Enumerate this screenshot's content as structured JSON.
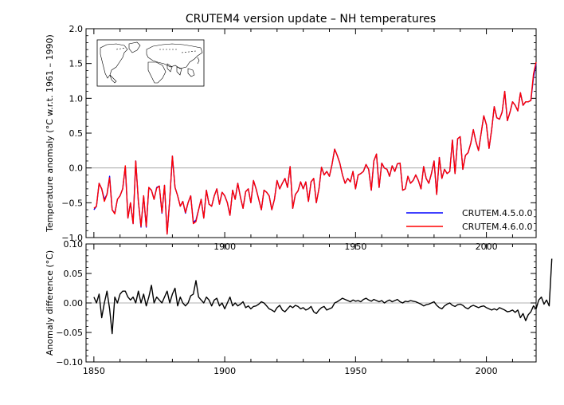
{
  "title": "CRUTEM4 version update – NH temperatures",
  "chart_data": [
    {
      "type": "line",
      "panel": "top",
      "title": "CRUTEM4 version update – NH temperatures",
      "xlabel": "",
      "ylabel": "Temperature anomaly (°C w.r.t. 1961 – 1990)",
      "xlim": [
        1847,
        2019
      ],
      "ylim": [
        -1.0,
        2.0
      ],
      "yticks": [
        "−1.0",
        "−0.5",
        "0.0",
        "0.5",
        "1.0",
        "1.5",
        "2.0"
      ],
      "xticks": [
        "1900",
        "1950",
        "2000"
      ],
      "grid": false,
      "zero_line": true,
      "legend_placement": "bottom-right",
      "inset": "world map highlighting the Northern Hemisphere",
      "x_start": 1850,
      "series": [
        {
          "name": "CRUTEM.4.5.0.0",
          "color": "#0000ff",
          "values": [
            -0.6,
            -0.55,
            -0.22,
            -0.3,
            -0.45,
            -0.38,
            -0.12,
            -0.6,
            -0.65,
            -0.45,
            -0.4,
            -0.3,
            0.02,
            -0.72,
            -0.5,
            -0.8,
            0.1,
            -0.48,
            -0.85,
            -0.4,
            -0.85,
            -0.28,
            -0.32,
            -0.45,
            -0.28,
            -0.26,
            -0.65,
            -0.25,
            -0.95,
            -0.45,
            0.17,
            -0.28,
            -0.4,
            -0.55,
            -0.48,
            -0.65,
            -0.5,
            -0.4,
            -0.78,
            -0.75,
            -0.6,
            -0.45,
            -0.72,
            -0.32,
            -0.52,
            -0.55,
            -0.4,
            -0.3,
            -0.52,
            -0.35,
            -0.4,
            -0.5,
            -0.68,
            -0.32,
            -0.45,
            -0.22,
            -0.42,
            -0.58,
            -0.34,
            -0.3,
            -0.5,
            -0.18,
            -0.3,
            -0.45,
            -0.6,
            -0.32,
            -0.35,
            -0.4,
            -0.6,
            -0.45,
            -0.18,
            -0.3,
            -0.22,
            -0.15,
            -0.28,
            0.02,
            -0.58,
            -0.38,
            -0.33,
            -0.2,
            -0.3,
            -0.2,
            -0.48,
            -0.2,
            -0.15,
            -0.5,
            -0.3,
            0.01,
            -0.1,
            -0.05,
            -0.12,
            0.05,
            0.27,
            0.18,
            0.07,
            -0.1,
            -0.22,
            -0.15,
            -0.2,
            -0.05,
            -0.3,
            -0.1,
            -0.08,
            -0.05,
            0.05,
            -0.02,
            -0.32,
            0.1,
            0.2,
            -0.28,
            0.07,
            0.0,
            -0.02,
            -0.12,
            0.03,
            -0.05,
            0.06,
            0.07,
            -0.32,
            -0.3,
            -0.12,
            -0.22,
            -0.18,
            -0.1,
            -0.18,
            -0.3,
            0.02,
            -0.15,
            -0.22,
            -0.08,
            0.1,
            -0.38,
            0.15,
            -0.15,
            -0.02,
            -0.08,
            -0.05,
            0.4,
            -0.08,
            0.42,
            0.45,
            -0.02,
            0.18,
            0.22,
            0.35,
            0.55,
            0.38,
            0.25,
            0.5,
            0.75,
            0.62,
            0.28,
            0.55,
            0.88,
            0.72,
            0.7,
            0.8,
            1.1,
            0.68,
            0.8,
            0.95,
            0.9,
            0.82,
            1.08,
            0.9,
            0.95,
            0.95,
            0.97,
            1.3,
            1.5
          ]
        },
        {
          "name": "CRUTEM.4.6.0.0",
          "color": "#ff0000",
          "values": [
            -0.58,
            -0.55,
            -0.22,
            -0.3,
            -0.48,
            -0.38,
            -0.14,
            -0.6,
            -0.66,
            -0.45,
            -0.4,
            -0.3,
            0.03,
            -0.72,
            -0.5,
            -0.8,
            0.1,
            -0.48,
            -0.84,
            -0.4,
            -0.84,
            -0.28,
            -0.32,
            -0.45,
            -0.29,
            -0.26,
            -0.64,
            -0.25,
            -0.95,
            -0.45,
            0.17,
            -0.28,
            -0.4,
            -0.55,
            -0.48,
            -0.64,
            -0.5,
            -0.4,
            -0.8,
            -0.77,
            -0.6,
            -0.45,
            -0.72,
            -0.32,
            -0.52,
            -0.55,
            -0.4,
            -0.3,
            -0.52,
            -0.35,
            -0.4,
            -0.5,
            -0.68,
            -0.32,
            -0.45,
            -0.22,
            -0.42,
            -0.58,
            -0.34,
            -0.3,
            -0.5,
            -0.18,
            -0.3,
            -0.45,
            -0.6,
            -0.32,
            -0.35,
            -0.4,
            -0.6,
            -0.45,
            -0.18,
            -0.3,
            -0.22,
            -0.15,
            -0.28,
            0.02,
            -0.58,
            -0.38,
            -0.33,
            -0.2,
            -0.3,
            -0.2,
            -0.48,
            -0.2,
            -0.15,
            -0.5,
            -0.3,
            0.01,
            -0.1,
            -0.05,
            -0.12,
            0.05,
            0.27,
            0.18,
            0.07,
            -0.1,
            -0.22,
            -0.15,
            -0.2,
            -0.05,
            -0.3,
            -0.1,
            -0.08,
            -0.05,
            0.05,
            -0.02,
            -0.32,
            0.1,
            0.2,
            -0.28,
            0.07,
            0.0,
            -0.02,
            -0.12,
            0.03,
            -0.05,
            0.06,
            0.07,
            -0.32,
            -0.3,
            -0.12,
            -0.22,
            -0.18,
            -0.1,
            -0.18,
            -0.3,
            0.02,
            -0.15,
            -0.22,
            -0.08,
            0.1,
            -0.38,
            0.15,
            -0.15,
            -0.02,
            -0.08,
            -0.05,
            0.4,
            -0.08,
            0.42,
            0.45,
            -0.02,
            0.18,
            0.22,
            0.35,
            0.55,
            0.38,
            0.25,
            0.5,
            0.75,
            0.62,
            0.28,
            0.55,
            0.88,
            0.72,
            0.7,
            0.8,
            1.1,
            0.68,
            0.8,
            0.95,
            0.9,
            0.82,
            1.08,
            0.9,
            0.95,
            0.95,
            0.97,
            1.35,
            1.52
          ]
        }
      ]
    },
    {
      "type": "line",
      "panel": "bottom",
      "xlabel": "",
      "ylabel": "Anomaly difference (°C)",
      "xlim": [
        1847,
        2019
      ],
      "ylim": [
        -0.1,
        0.1
      ],
      "yticks": [
        "−0.10",
        "−0.05",
        "0.00",
        "0.05",
        "0.10"
      ],
      "xticks": [
        "1850",
        "1900",
        "1950",
        "2000"
      ],
      "grid": false,
      "zero_line": true,
      "x_start": 1850,
      "series": [
        {
          "color": "#000000",
          "values": [
            0.01,
            0.0,
            0.015,
            -0.025,
            0.0,
            0.02,
            -0.01,
            -0.052,
            0.01,
            0.0,
            0.015,
            0.02,
            0.02,
            0.01,
            0.005,
            0.01,
            0.0,
            0.02,
            0.0,
            0.015,
            -0.005,
            0.01,
            0.03,
            0.0,
            0.01,
            0.005,
            0.0,
            0.01,
            0.02,
            0.0,
            0.015,
            0.025,
            -0.005,
            0.01,
            0.0,
            -0.005,
            0.0,
            0.012,
            0.015,
            0.038,
            0.01,
            0.005,
            0.0,
            0.01,
            0.005,
            -0.005,
            0.005,
            0.008,
            -0.005,
            0.0,
            -0.01,
            0.0,
            0.01,
            -0.005,
            0.0,
            -0.005,
            -0.002,
            0.002,
            -0.008,
            -0.005,
            -0.01,
            -0.006,
            -0.005,
            -0.002,
            0.002,
            0.0,
            -0.005,
            -0.01,
            -0.012,
            -0.015,
            -0.008,
            -0.004,
            -0.012,
            -0.015,
            -0.01,
            -0.005,
            -0.008,
            -0.004,
            -0.006,
            -0.01,
            -0.008,
            -0.012,
            -0.01,
            -0.006,
            -0.015,
            -0.018,
            -0.012,
            -0.008,
            -0.006,
            -0.012,
            -0.01,
            -0.008,
            0.0,
            0.002,
            0.005,
            0.008,
            0.006,
            0.004,
            0.002,
            0.005,
            0.003,
            0.004,
            0.002,
            0.006,
            0.008,
            0.005,
            0.003,
            0.006,
            0.004,
            0.002,
            0.004,
            0.0,
            0.003,
            0.005,
            0.002,
            0.004,
            0.006,
            0.002,
            0.0,
            0.003,
            0.002,
            0.004,
            0.003,
            0.002,
            0.0,
            -0.002,
            -0.005,
            -0.003,
            -0.002,
            0.0,
            0.002,
            -0.004,
            -0.008,
            -0.01,
            -0.005,
            -0.002,
            0.0,
            -0.004,
            -0.006,
            -0.003,
            -0.002,
            -0.004,
            -0.008,
            -0.01,
            -0.006,
            -0.004,
            -0.006,
            -0.008,
            -0.006,
            -0.005,
            -0.008,
            -0.01,
            -0.012,
            -0.01,
            -0.012,
            -0.008,
            -0.01,
            -0.012,
            -0.015,
            -0.014,
            -0.012,
            -0.016,
            -0.012,
            -0.025,
            -0.018,
            -0.03,
            -0.02,
            -0.015,
            -0.005,
            -0.01,
            0.005,
            0.01,
            -0.002,
            0.005,
            -0.005,
            0.075
          ]
        }
      ]
    }
  ]
}
